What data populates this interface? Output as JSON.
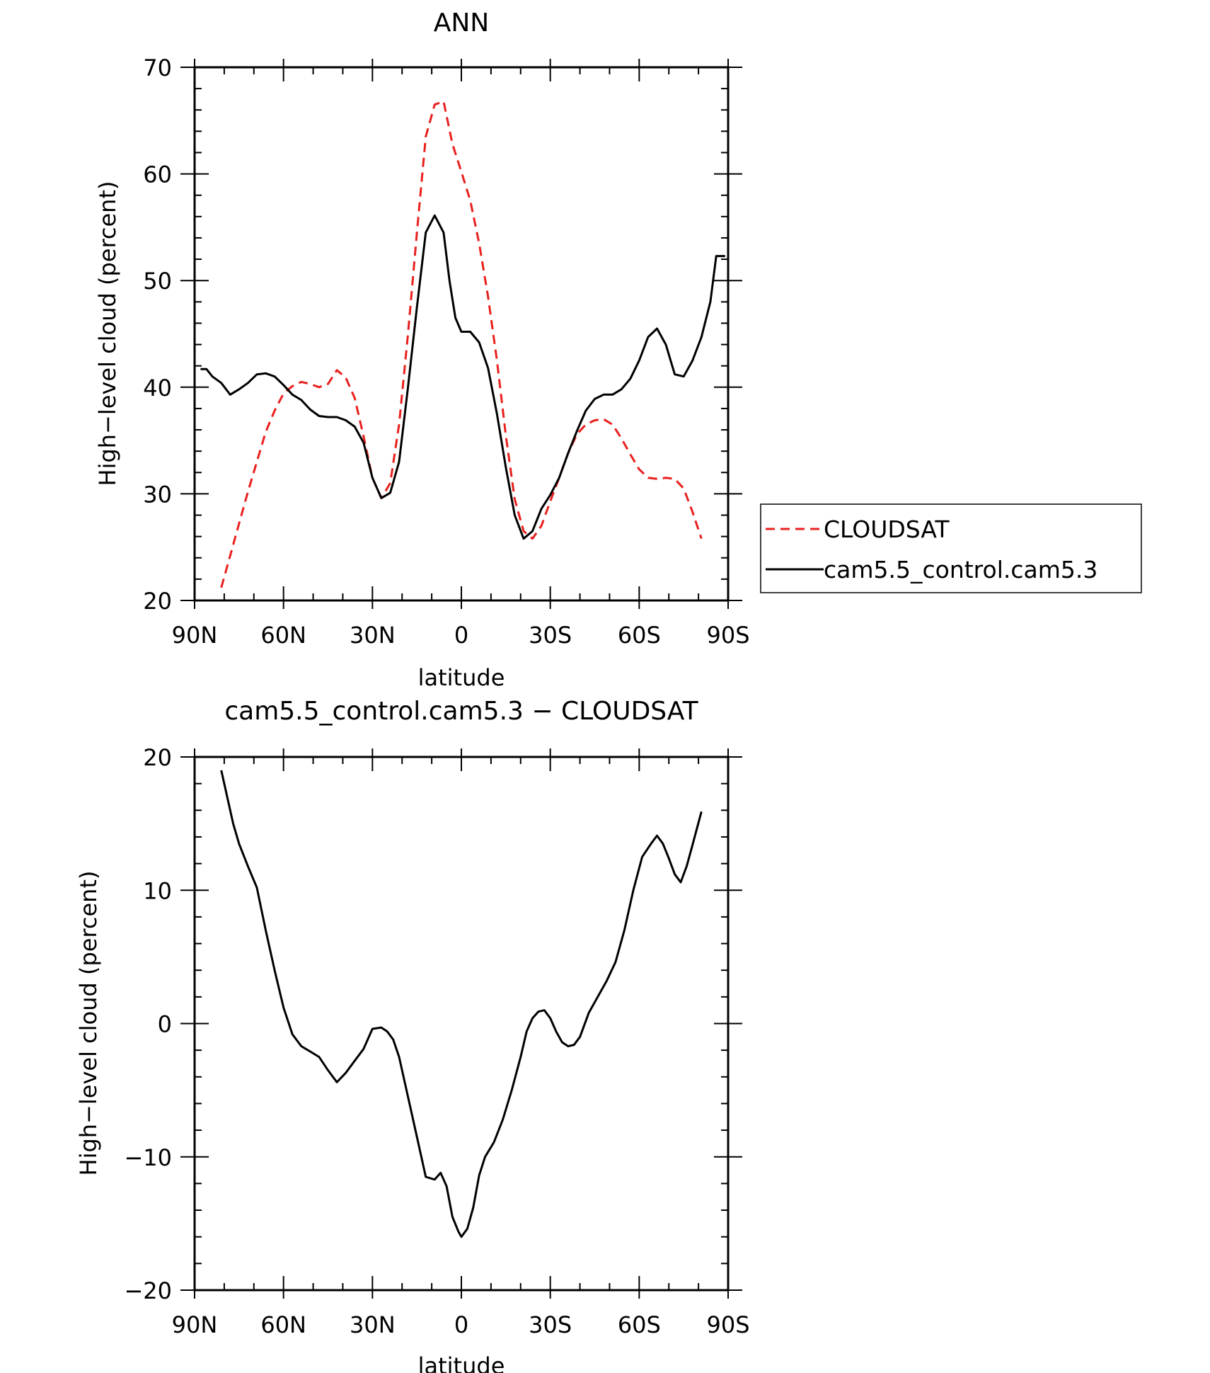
{
  "chart_data": [
    {
      "type": "line",
      "title": "ANN",
      "xlabel": "latitude",
      "ylabel": "High−level cloud (percent)",
      "xlim": [
        90,
        -90
      ],
      "ylim": [
        20,
        70
      ],
      "x_ticks": [
        90,
        60,
        30,
        0,
        -30,
        -60,
        -90
      ],
      "x_tick_labels": [
        "90N",
        "60N",
        "30N",
        "0",
        "30S",
        "60S",
        "90S"
      ],
      "y_ticks": [
        20,
        30,
        40,
        50,
        60,
        70
      ],
      "y_tick_labels": [
        "20",
        "30",
        "40",
        "50",
        "60",
        "70"
      ],
      "legend": {
        "position": "right",
        "entries": [
          "CLOUDSAT",
          "cam5.5_control.cam5.3"
        ]
      },
      "series": [
        {
          "name": "CLOUDSAT",
          "color": "#e8201e",
          "dash": "dashed",
          "x": [
            81,
            78,
            75,
            72,
            69,
            66,
            63,
            60,
            57,
            54,
            51,
            48,
            45,
            42,
            39,
            36,
            33,
            30,
            27,
            24,
            21,
            18,
            15,
            12,
            9,
            6,
            3,
            0,
            -3,
            -6,
            -9,
            -12,
            -15,
            -18,
            -21,
            -24,
            -27,
            -30,
            -33,
            -36,
            -39,
            -42,
            -45,
            -48,
            -51,
            -54,
            -57,
            -60,
            -63,
            -66,
            -69,
            -72,
            -75,
            -78,
            -81
          ],
          "y": [
            21.2,
            24.2,
            27.2,
            30.2,
            33.0,
            35.8,
            37.8,
            39.4,
            40.1,
            40.5,
            40.3,
            40.0,
            40.3,
            41.6,
            40.9,
            39.0,
            35.4,
            31.5,
            29.6,
            31.0,
            36.5,
            45.0,
            54.5,
            63.5,
            66.5,
            66.8,
            62.8,
            60.2,
            57.5,
            53.5,
            48.5,
            42.5,
            35.5,
            29.5,
            26.5,
            25.8,
            27.0,
            29.3,
            31.5,
            33.8,
            35.6,
            36.5,
            36.9,
            37.0,
            36.5,
            35.2,
            33.7,
            32.3,
            31.5,
            31.4,
            31.5,
            31.4,
            30.5,
            28.3,
            25.8
          ]
        },
        {
          "name": "cam5.5_control.cam5.3",
          "color": "#000000",
          "dash": "solid",
          "x": [
            88,
            86,
            84,
            81,
            78,
            75,
            72,
            69,
            66,
            63,
            60,
            57,
            54,
            51,
            48,
            45,
            42,
            39,
            36,
            33,
            30,
            27,
            24,
            21,
            18,
            15,
            12,
            9,
            6,
            4,
            2,
            0,
            -3,
            -6,
            -9,
            -12,
            -15,
            -18,
            -21,
            -24,
            -27,
            -30,
            -33,
            -36,
            -39,
            -42,
            -45,
            -48,
            -51,
            -54,
            -57,
            -60,
            -63,
            -66,
            -69,
            -72,
            -75,
            -78,
            -81,
            -84,
            -86,
            -89
          ],
          "y": [
            41.7,
            41.7,
            41.0,
            40.4,
            39.3,
            39.8,
            40.4,
            41.2,
            41.3,
            41.0,
            40.2,
            39.3,
            38.8,
            37.9,
            37.3,
            37.2,
            37.2,
            36.9,
            36.3,
            34.8,
            31.5,
            29.6,
            30.1,
            33.0,
            40.0,
            47.5,
            54.5,
            56.1,
            54.5,
            50.0,
            46.5,
            45.2,
            45.2,
            44.2,
            41.8,
            37.5,
            32.5,
            28.0,
            25.8,
            26.5,
            28.6,
            29.9,
            31.5,
            33.8,
            35.9,
            37.8,
            38.9,
            39.3,
            39.3,
            39.8,
            40.8,
            42.5,
            44.7,
            45.5,
            44.0,
            41.2,
            41.0,
            42.5,
            44.7,
            48.0,
            52.3,
            52.3
          ]
        }
      ]
    },
    {
      "type": "line",
      "title": "cam5.5_control.cam5.3 − CLOUDSAT",
      "xlabel": "latitude",
      "ylabel": "High−level cloud (percent)",
      "xlim": [
        90,
        -90
      ],
      "ylim": [
        -20,
        20
      ],
      "x_ticks": [
        90,
        60,
        30,
        0,
        -30,
        -60,
        -90
      ],
      "x_tick_labels": [
        "90N",
        "60N",
        "30N",
        "0",
        "30S",
        "60S",
        "90S"
      ],
      "y_ticks": [
        -20,
        -10,
        0,
        10,
        20
      ],
      "y_tick_labels": [
        "−20",
        "−10",
        "0",
        "10",
        "20"
      ],
      "series": [
        {
          "name": "difference",
          "color": "#000000",
          "dash": "solid",
          "x": [
            81,
            79,
            77,
            75,
            72,
            69,
            66,
            63,
            60,
            57,
            54,
            51,
            48,
            45,
            42,
            39,
            36,
            33,
            30,
            27,
            25,
            23,
            21,
            18,
            15,
            12,
            9,
            7,
            5,
            3,
            1,
            0,
            -2,
            -4,
            -6,
            -8,
            -11,
            -14,
            -17,
            -20,
            -22,
            -24,
            -26,
            -28,
            -30,
            -32,
            -34,
            -36,
            -38,
            -40,
            -43,
            -46,
            -49,
            -52,
            -55,
            -58,
            -61,
            -64,
            -66,
            -68,
            -70,
            -72,
            -74,
            -76,
            -78,
            -81
          ],
          "y": [
            19.0,
            17.0,
            15.0,
            13.5,
            11.8,
            10.2,
            7.0,
            4.0,
            1.2,
            -0.8,
            -1.7,
            -2.1,
            -2.5,
            -3.5,
            -4.4,
            -3.7,
            -2.8,
            -1.9,
            -0.4,
            -0.3,
            -0.6,
            -1.2,
            -2.5,
            -5.5,
            -8.5,
            -11.5,
            -11.7,
            -11.2,
            -12.2,
            -14.5,
            -15.6,
            -16.0,
            -15.4,
            -13.8,
            -11.4,
            -10.0,
            -8.9,
            -7.2,
            -5.0,
            -2.5,
            -0.6,
            0.4,
            0.9,
            1.0,
            0.4,
            -0.6,
            -1.4,
            -1.7,
            -1.6,
            -1.0,
            0.8,
            2.0,
            3.2,
            4.6,
            7.0,
            10.0,
            12.5,
            13.5,
            14.1,
            13.5,
            12.4,
            11.2,
            10.6,
            11.8,
            13.4,
            15.9
          ]
        }
      ]
    }
  ]
}
